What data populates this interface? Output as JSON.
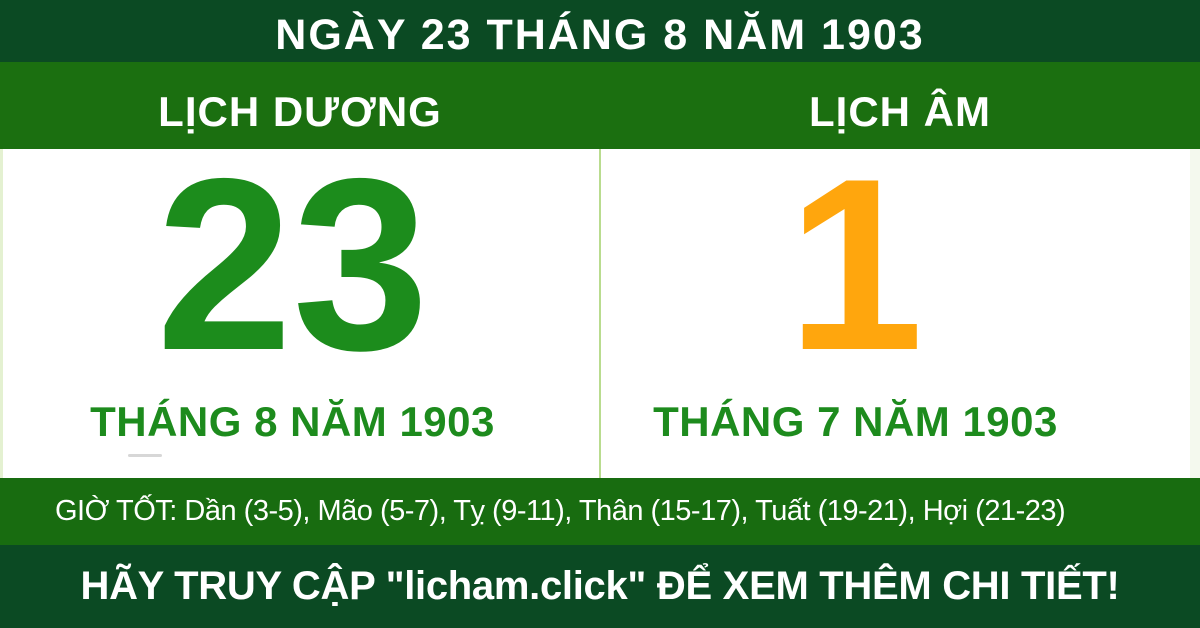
{
  "header": {
    "title": "NGÀY 23 THÁNG 8 NĂM 1903"
  },
  "columns": {
    "solar": {
      "label": "LỊCH DƯƠNG",
      "day": "23",
      "month_year": "THÁNG 8 NĂM 1903"
    },
    "lunar": {
      "label": "LỊCH ÂM",
      "day": "1",
      "month_year": "THÁNG 7 NĂM 1903"
    }
  },
  "good_hours": {
    "text": "GIỜ TỐT: Dần (3-5), Mão (5-7), Tỵ (9-11), Thân (15-17), Tuất (19-21), Hợi (21-23)"
  },
  "footer": {
    "text": "HÃY TRUY CẬP \"licham.click\" ĐỂ XEM THÊM CHI TIẾT!"
  },
  "colors": {
    "dark_green": "#0b4a23",
    "band_green": "#1b6f10",
    "hours_green": "#186c10",
    "number_green": "#1c8c1c",
    "month_green": "#1d8b1d",
    "lunar_orange": "#ffa60d",
    "divider_green": "#b9dc8f",
    "edge_tint": "#f4f9ee"
  }
}
